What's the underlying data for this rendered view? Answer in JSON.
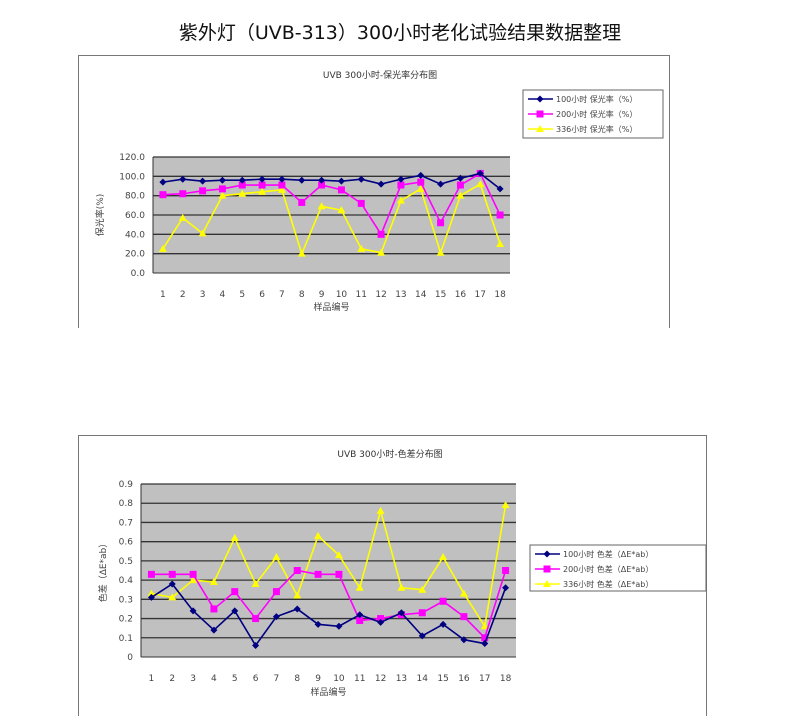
{
  "page_title": "紫外灯（UVB-313）300小时老化试验结果数据整理",
  "chart_data": [
    {
      "type": "line",
      "title": "UVB 300小时-保光率分布图",
      "xlabel": "样品编号",
      "ylabel": "保光率(%)",
      "categories": [
        "1",
        "2",
        "3",
        "4",
        "5",
        "6",
        "7",
        "8",
        "9",
        "10",
        "11",
        "12",
        "13",
        "14",
        "15",
        "16",
        "17",
        "18"
      ],
      "ylim": [
        0,
        120
      ],
      "ytick_step": 20,
      "ytick_labels": [
        "0.0",
        "20.0",
        "40.0",
        "60.0",
        "80.0",
        "100.0",
        "120.0"
      ],
      "grid": true,
      "legend": "top-right",
      "series": [
        {
          "name": "100小时 保光率（%）",
          "color": "#000080",
          "marker": "diamond",
          "values": [
            94,
            97,
            95,
            96,
            96,
            97,
            97,
            96,
            96,
            95,
            97,
            92,
            97,
            101,
            92,
            98,
            103,
            87
          ]
        },
        {
          "name": "200小时 保光率（%）",
          "color": "#ff00ff",
          "marker": "square",
          "values": [
            81,
            82,
            85,
            87,
            91,
            91,
            91,
            73,
            91,
            86,
            72,
            40,
            91,
            94,
            52,
            91,
            103,
            60
          ]
        },
        {
          "name": "336小时 保光率（%）",
          "color": "#ffff00",
          "marker": "triangle",
          "values": [
            25,
            57,
            41,
            80,
            82,
            84,
            86,
            20,
            69,
            65,
            25,
            21,
            75,
            87,
            21,
            80,
            92,
            30
          ]
        }
      ]
    },
    {
      "type": "line",
      "title": "UVB 300小时-色差分布图",
      "xlabel": "样品编号",
      "ylabel": "色差（ΔE*ab）",
      "categories": [
        "1",
        "2",
        "3",
        "4",
        "5",
        "6",
        "7",
        "8",
        "9",
        "10",
        "11",
        "12",
        "13",
        "14",
        "15",
        "16",
        "17",
        "18"
      ],
      "ylim": [
        0,
        0.9
      ],
      "ytick_step": 0.1,
      "ytick_labels": [
        "0",
        "0.1",
        "0.2",
        "0.3",
        "0.4",
        "0.5",
        "0.6",
        "0.7",
        "0.8",
        "0.9"
      ],
      "grid": true,
      "legend": "right",
      "series": [
        {
          "name": "100小时 色差（ΔE*ab）",
          "color": "#000080",
          "marker": "diamond",
          "values": [
            0.31,
            0.38,
            0.24,
            0.14,
            0.24,
            0.06,
            0.21,
            0.25,
            0.17,
            0.16,
            0.22,
            0.18,
            0.23,
            0.11,
            0.17,
            0.09,
            0.07,
            0.36
          ]
        },
        {
          "name": "200小时 色差（ΔE*ab）",
          "color": "#ff00ff",
          "marker": "square",
          "values": [
            0.43,
            0.43,
            0.43,
            0.25,
            0.34,
            0.2,
            0.34,
            0.45,
            0.43,
            0.43,
            0.19,
            0.2,
            0.22,
            0.23,
            0.29,
            0.21,
            0.1,
            0.45
          ]
        },
        {
          "name": "336小时 色差（ΔE*ab）",
          "color": "#ffff00",
          "marker": "triangle",
          "values": [
            0.33,
            0.31,
            0.4,
            0.39,
            0.62,
            0.38,
            0.52,
            0.32,
            0.63,
            0.53,
            0.36,
            0.76,
            0.36,
            0.35,
            0.52,
            0.33,
            0.16,
            0.79
          ]
        }
      ]
    }
  ]
}
